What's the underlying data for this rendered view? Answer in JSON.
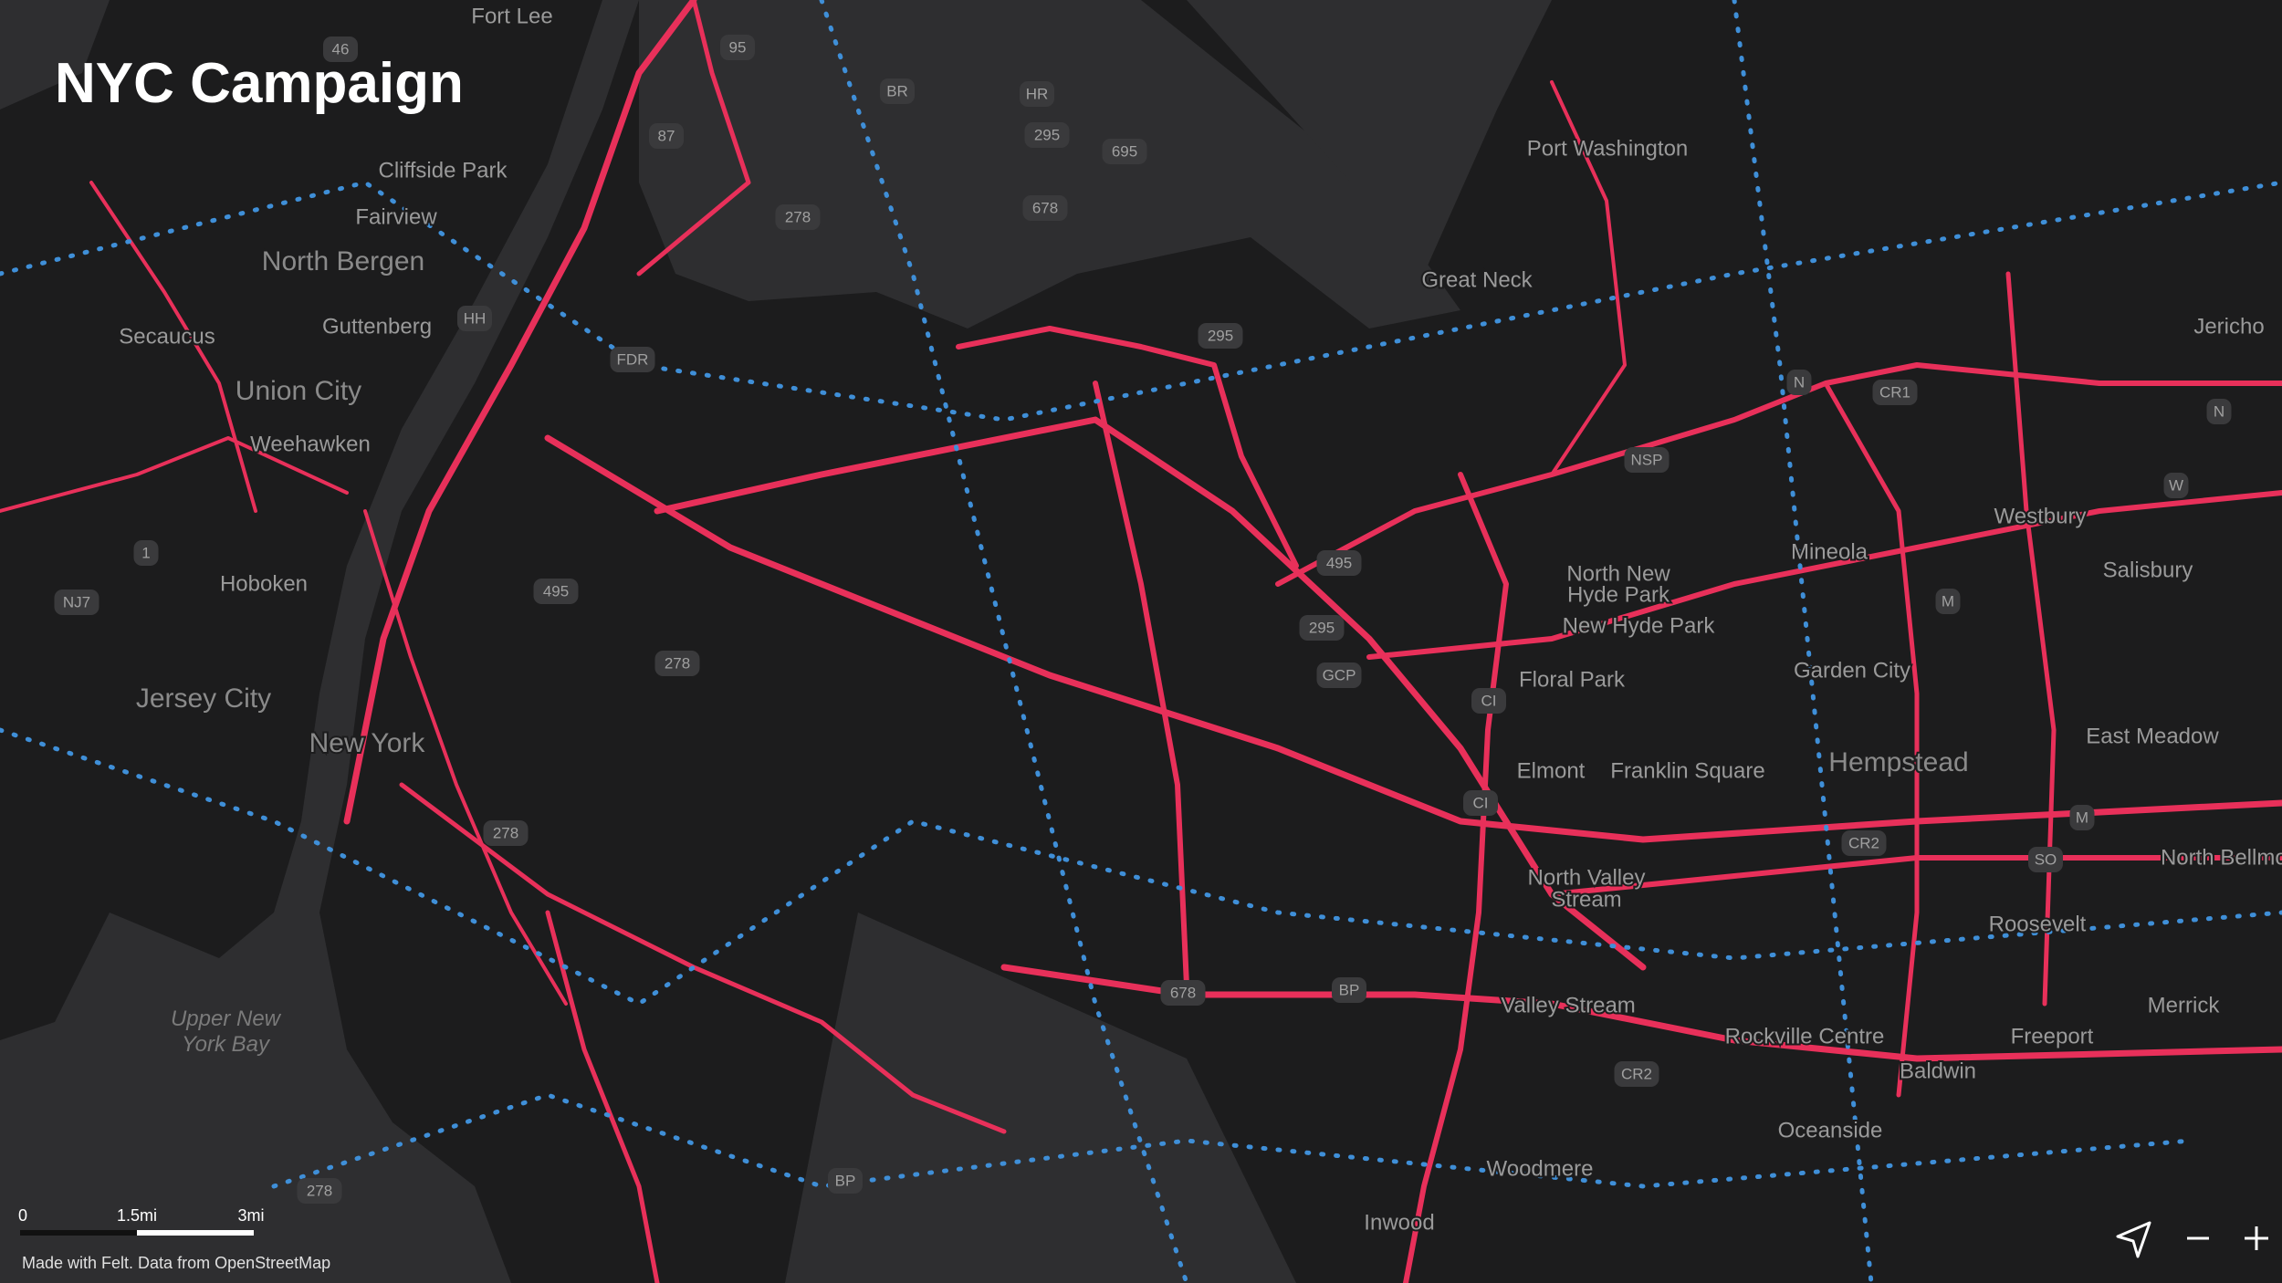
{
  "title": "NYC Campaign",
  "places": [
    "Fort Lee",
    "Cliffside Park",
    "Fairview",
    "North Bergen",
    "Guttenberg",
    "Secaucus",
    "Union City",
    "Weehawken",
    "Hoboken",
    "Jersey City",
    "New York",
    "Upper New",
    "York Bay",
    "Port Washington",
    "Great Neck",
    "Jericho",
    "Westbury",
    "Mineola",
    "Salisbury",
    "North New",
    "Hyde Park",
    "New Hyde Park",
    "Floral Park",
    "Garden City",
    "Elmont",
    "Franklin Square",
    "Hempstead",
    "East Meadow",
    "North Valley",
    "Stream",
    "Roosevelt",
    "North Bellmore",
    "Valley Stream",
    "Rockville Centre",
    "Freeport",
    "Merrick",
    "Baldwin",
    "Oceanside",
    "Woodmere",
    "Inwood"
  ],
  "shields": [
    "95",
    "BR",
    "HR",
    "87",
    "295",
    "695",
    "678",
    "278",
    "HH",
    "FDR",
    "295",
    "495",
    "278",
    "495",
    "295",
    "GCP",
    "CI",
    "CI",
    "278",
    "678",
    "BP",
    "CR2",
    "BP",
    "278",
    "NSP",
    "N",
    "CR1",
    "W",
    "M",
    "CR2",
    "SO",
    "M",
    "N",
    "46",
    "1",
    "NJ7"
  ],
  "scale": {
    "labels": [
      "0",
      "1.5mi",
      "3mi"
    ]
  },
  "attribution": "Made with Felt. Data from OpenStreetMap"
}
